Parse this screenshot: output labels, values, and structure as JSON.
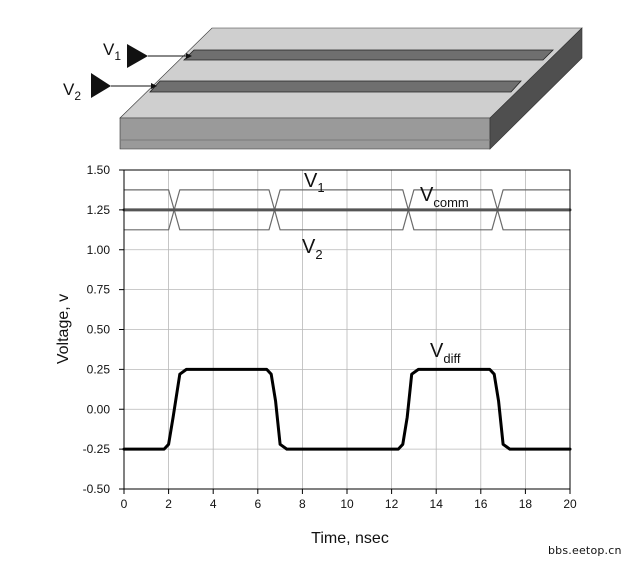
{
  "board": {
    "label_v1": "V",
    "label_v1_sub": "1",
    "label_v2": "V",
    "label_v2_sub": "2",
    "colors": {
      "top": "#cfcfcf",
      "front": "#9a9a9a",
      "side": "#4f4f4f",
      "trace": "#6f6f6f"
    }
  },
  "chart_data": {
    "type": "line",
    "xlabel": "Time, nsec",
    "ylabel": "Voltage, v",
    "xlim": [
      0,
      20
    ],
    "ylim": [
      -0.5,
      1.5
    ],
    "grid": true,
    "x_ticks": [
      0,
      2,
      4,
      6,
      8,
      10,
      12,
      14,
      16,
      18,
      20
    ],
    "y_ticks": [
      -0.5,
      -0.25,
      0.0,
      0.25,
      0.5,
      0.75,
      1.0,
      1.25,
      1.5
    ],
    "y_tick_labels": [
      "-0.50",
      "-0.25",
      "0.00",
      "0.25",
      "0.50",
      "0.75",
      "1.00",
      "1.25",
      "1.50"
    ],
    "series": [
      {
        "name": "V1",
        "x": [
          0,
          2,
          2.5,
          6.5,
          7,
          12.5,
          13,
          16.5,
          17,
          20
        ],
        "values": [
          1.375,
          1.375,
          1.125,
          1.125,
          1.375,
          1.375,
          1.125,
          1.125,
          1.375,
          1.375
        ],
        "color": "#6b6b6b",
        "width": 1.2
      },
      {
        "name": "V2",
        "x": [
          0,
          2,
          2.5,
          6.5,
          7,
          12.5,
          13,
          16.5,
          17,
          20
        ],
        "values": [
          1.125,
          1.125,
          1.375,
          1.375,
          1.125,
          1.125,
          1.375,
          1.375,
          1.125,
          1.125
        ],
        "color": "#6b6b6b",
        "width": 1.2
      },
      {
        "name": "Vcomm",
        "x": [
          0,
          20
        ],
        "values": [
          1.25,
          1.25
        ],
        "color": "#555555",
        "width": 3
      },
      {
        "name": "Vdiff",
        "x": [
          0,
          1.8,
          2.0,
          2.2,
          2.5,
          2.8,
          6.4,
          6.6,
          6.8,
          7.0,
          7.3,
          12.3,
          12.5,
          12.7,
          12.9,
          13.2,
          16.4,
          16.6,
          16.8,
          17.0,
          17.3,
          20
        ],
        "values": [
          -0.25,
          -0.25,
          -0.22,
          -0.05,
          0.22,
          0.25,
          0.25,
          0.22,
          0.05,
          -0.22,
          -0.25,
          -0.25,
          -0.22,
          -0.05,
          0.22,
          0.25,
          0.25,
          0.22,
          0.05,
          -0.22,
          -0.25,
          -0.25
        ],
        "color": "#000000",
        "width": 3
      }
    ],
    "annotations": [
      {
        "text": "V",
        "sub": "1"
      },
      {
        "text": "V",
        "sub": "comm"
      },
      {
        "text": "V",
        "sub": "2"
      },
      {
        "text": "V",
        "sub": "diff"
      }
    ]
  },
  "watermark": "bbs.eetop.cn"
}
